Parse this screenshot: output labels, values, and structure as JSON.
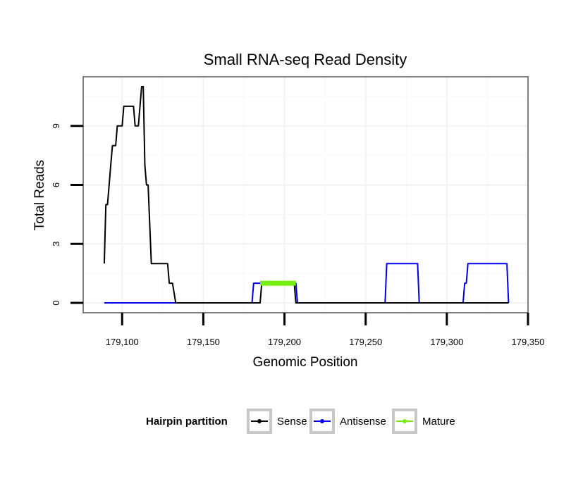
{
  "chart_data": {
    "type": "line",
    "title": "Small RNA-seq Read Density",
    "xlabel": "Genomic Position",
    "ylabel": "Total Reads",
    "xlim": [
      179076,
      179350
    ],
    "ylim": [
      -0.5,
      11.5
    ],
    "x_ticks": [
      179100,
      179150,
      179200,
      179250,
      179300,
      179350
    ],
    "x_tick_labels": [
      "179,100",
      "179,150",
      "179,200",
      "179,250",
      "179,300",
      "179,350"
    ],
    "y_ticks": [
      0,
      3,
      6,
      9
    ],
    "y_tick_labels": [
      "0",
      "3",
      "6",
      "9"
    ],
    "grid": true,
    "legend": {
      "title": "Hairpin partition",
      "position": "bottom",
      "entries": [
        "Sense",
        "Antisense",
        "Mature"
      ]
    },
    "series": [
      {
        "name": "Sense",
        "color": "#000000",
        "x": [
          179089,
          179090,
          179091,
          179093,
          179094,
          179095,
          179096,
          179097,
          179098,
          179100,
          179101,
          179107,
          179108,
          179110,
          179111,
          179112,
          179113,
          179114,
          179115,
          179116,
          179117,
          179118,
          179119,
          179120,
          179124,
          179125,
          179126,
          179127,
          179128,
          179129,
          179131,
          179133,
          179134,
          179185,
          179186,
          179206,
          179207,
          179338
        ],
        "y": [
          2,
          5,
          5,
          7,
          8,
          8,
          8,
          9,
          9,
          9,
          10,
          10,
          9,
          9,
          10,
          11,
          11,
          7,
          6,
          6,
          4,
          2,
          2,
          2,
          2,
          2,
          2,
          2,
          2,
          1,
          1,
          0,
          0,
          0,
          1,
          1,
          0,
          0
        ]
      },
      {
        "name": "Antisense",
        "color": "#0000ee",
        "x": [
          179089,
          179180,
          179181,
          179184,
          179185,
          179207,
          179208,
          179262,
          179263,
          179282,
          179283,
          179310,
          179311,
          179312,
          179313,
          179337,
          179338
        ],
        "y": [
          0,
          0,
          1,
          1,
          1,
          1,
          0,
          0,
          2,
          2,
          0,
          0,
          1,
          1,
          2,
          2,
          0
        ]
      },
      {
        "name": "Mature",
        "color": "#77ee11",
        "x": [
          179185,
          179207
        ],
        "y": [
          1,
          1
        ]
      }
    ]
  }
}
